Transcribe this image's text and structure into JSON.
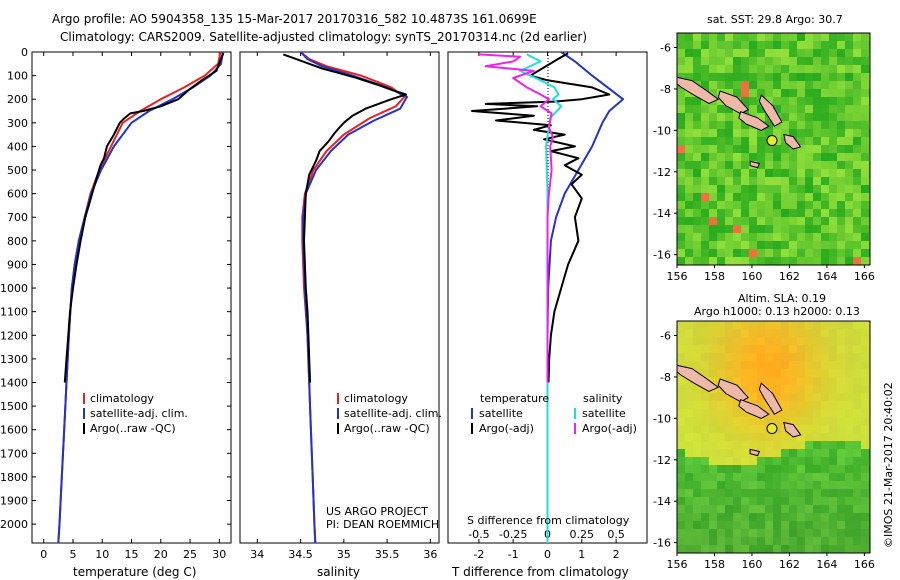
{
  "header": {
    "line1": "Argo profile: AO 5904358_135 15-Mar-2017 20170316_582 10.4873S 161.0699E",
    "line2": "Climatology: CARS2009. Satellite-adjusted climatology: synTS_20170314.nc (2d earlier)"
  },
  "colors": {
    "climatology": "#e8231e",
    "satellite": "#2233cc",
    "argo": "#000000",
    "salinity_diff_sat": "#22dddd",
    "salinity_diff_argo": "#ee22ee"
  },
  "temperature_panel": {
    "xlabel": "temperature (deg C)",
    "legend": [
      "climatology",
      "satellite-adj. clim.",
      "Argo(..raw -QC)"
    ]
  },
  "salinity_panel": {
    "xlabel": "salinity",
    "legend": [
      "climatology",
      "satellite-adj. clim.",
      "Argo(..raw -QC)"
    ],
    "credit1": "US ARGO PROJECT",
    "credit2": "PI: DEAN ROEMMICH"
  },
  "difference_panel": {
    "top_label": "S difference from climatology",
    "xlabel": "T difference from climatology",
    "legend_header_t": "temperature",
    "legend_header_s": "salinity",
    "legend_t": [
      "satellite",
      "Argo(-adj)"
    ],
    "legend_s": [
      "satellite",
      "Argo(-adj)"
    ]
  },
  "sst_map": {
    "title": "sat. SST: 29.8 Argo: 30.7",
    "xticks": [
      "156",
      "158",
      "160",
      "162",
      "164",
      "166"
    ],
    "yticks": [
      "-6",
      "-8",
      "-10",
      "-12",
      "-14",
      "-16"
    ]
  },
  "sla_map": {
    "title1": "Altim. SLA: 0.19",
    "title2": "Argo h1000: 0.13 h2000: 0.13",
    "xticks": [
      "156",
      "158",
      "160",
      "162",
      "164",
      "166"
    ],
    "yticks": [
      "-6",
      "-8",
      "-10",
      "-12",
      "-14",
      "-16"
    ]
  },
  "stamp": "©IMOS 21-Mar-2017 20:40:02",
  "chart_data": [
    {
      "type": "line",
      "name": "temperature profile",
      "xlabel": "temperature (deg C)",
      "xlim": [
        -2,
        32
      ],
      "ylim": [
        0,
        2080
      ],
      "xticks": [
        0,
        5,
        10,
        15,
        20,
        25,
        30
      ],
      "yticks": [
        0,
        100,
        200,
        300,
        400,
        500,
        600,
        700,
        800,
        900,
        1000,
        1100,
        1200,
        1300,
        1400,
        1500,
        1600,
        1700,
        1800,
        1900,
        2000
      ],
      "series": [
        {
          "name": "climatology",
          "points": [
            [
              30.2,
              0
            ],
            [
              29.8,
              50
            ],
            [
              27.5,
              100
            ],
            [
              24,
              150
            ],
            [
              20,
              200
            ],
            [
              16.5,
              250
            ],
            [
              13.5,
              300
            ],
            [
              11.5,
              400
            ],
            [
              9.5,
              500
            ],
            [
              8,
              600
            ],
            [
              7,
              700
            ],
            [
              6,
              800
            ],
            [
              5.3,
              900
            ],
            [
              4.8,
              1000
            ],
            [
              4.3,
              1200
            ],
            [
              3.9,
              1400
            ],
            [
              3.5,
              1600
            ],
            [
              3.1,
              1800
            ],
            [
              2.7,
              2000
            ],
            [
              2.5,
              2080
            ]
          ]
        },
        {
          "name": "satellite-adj. clim.",
          "points": [
            [
              30.6,
              0
            ],
            [
              30.3,
              50
            ],
            [
              28.5,
              100
            ],
            [
              25.5,
              150
            ],
            [
              22,
              200
            ],
            [
              18,
              250
            ],
            [
              15,
              300
            ],
            [
              12,
              400
            ],
            [
              9.8,
              500
            ],
            [
              8.1,
              600
            ],
            [
              7,
              700
            ],
            [
              6,
              800
            ],
            [
              5.3,
              900
            ],
            [
              4.8,
              1000
            ],
            [
              4.3,
              1200
            ],
            [
              3.9,
              1400
            ],
            [
              3.5,
              1600
            ],
            [
              3.1,
              1800
            ],
            [
              2.7,
              2000
            ],
            [
              2.5,
              2080
            ]
          ]
        },
        {
          "name": "Argo(..raw -QC)",
          "points": [
            [
              30.7,
              5
            ],
            [
              30.1,
              40
            ],
            [
              29.5,
              80
            ],
            [
              27,
              120
            ],
            [
              24.8,
              160
            ],
            [
              23,
              200
            ],
            [
              20,
              230
            ],
            [
              17,
              250
            ],
            [
              14.8,
              260
            ],
            [
              13.8,
              280
            ],
            [
              13,
              300
            ],
            [
              12,
              350
            ],
            [
              10.8,
              400
            ],
            [
              10.3,
              450
            ],
            [
              9.7,
              480
            ],
            [
              9.2,
              520
            ],
            [
              8.5,
              580
            ],
            [
              7.7,
              650
            ],
            [
              7.1,
              700
            ],
            [
              6.3,
              800
            ],
            [
              5.6,
              900
            ],
            [
              5,
              1000
            ],
            [
              4.5,
              1100
            ],
            [
              4.2,
              1200
            ],
            [
              3.9,
              1300
            ],
            [
              3.6,
              1400
            ]
          ]
        }
      ]
    },
    {
      "type": "line",
      "name": "salinity profile",
      "xlabel": "salinity",
      "xlim": [
        33.8,
        36.1
      ],
      "ylim": [
        0,
        2080
      ],
      "xticks": [
        34,
        34.5,
        35,
        35.5,
        36
      ],
      "series": [
        {
          "name": "climatology",
          "points": [
            [
              34.5,
              0
            ],
            [
              34.6,
              30
            ],
            [
              34.8,
              60
            ],
            [
              35.2,
              100
            ],
            [
              35.55,
              150
            ],
            [
              35.7,
              190
            ],
            [
              35.6,
              230
            ],
            [
              35.3,
              280
            ],
            [
              35,
              350
            ],
            [
              34.8,
              420
            ],
            [
              34.65,
              500
            ],
            [
              34.55,
              600
            ],
            [
              34.52,
              700
            ],
            [
              34.52,
              800
            ],
            [
              34.54,
              1000
            ],
            [
              34.58,
              1200
            ],
            [
              34.6,
              1400
            ],
            [
              34.62,
              1600
            ],
            [
              34.64,
              1800
            ],
            [
              34.66,
              2000
            ],
            [
              34.67,
              2080
            ]
          ]
        },
        {
          "name": "satellite-adj. clim.",
          "points": [
            [
              34.5,
              0
            ],
            [
              34.58,
              30
            ],
            [
              34.75,
              60
            ],
            [
              35.1,
              100
            ],
            [
              35.5,
              150
            ],
            [
              35.73,
              190
            ],
            [
              35.65,
              240
            ],
            [
              35.35,
              290
            ],
            [
              35.05,
              350
            ],
            [
              34.85,
              420
            ],
            [
              34.68,
              500
            ],
            [
              34.56,
              600
            ],
            [
              34.53,
              700
            ],
            [
              34.53,
              800
            ],
            [
              34.55,
              1000
            ],
            [
              34.58,
              1200
            ],
            [
              34.6,
              1400
            ],
            [
              34.62,
              1600
            ],
            [
              34.64,
              1800
            ],
            [
              34.66,
              2000
            ],
            [
              34.67,
              2080
            ]
          ]
        },
        {
          "name": "Argo(..raw -QC)",
          "points": [
            [
              34.3,
              10
            ],
            [
              34.45,
              30
            ],
            [
              34.6,
              50
            ],
            [
              34.75,
              70
            ],
            [
              34.95,
              90
            ],
            [
              35.15,
              110
            ],
            [
              35.4,
              140
            ],
            [
              35.55,
              160
            ],
            [
              35.72,
              180
            ],
            [
              35.55,
              200
            ],
            [
              35.4,
              220
            ],
            [
              35.25,
              240
            ],
            [
              35.1,
              270
            ],
            [
              35.0,
              300
            ],
            [
              34.9,
              340
            ],
            [
              34.82,
              380
            ],
            [
              34.72,
              420
            ],
            [
              34.68,
              460
            ],
            [
              34.6,
              520
            ],
            [
              34.56,
              600
            ],
            [
              34.55,
              700
            ],
            [
              34.54,
              800
            ],
            [
              34.55,
              900
            ],
            [
              34.56,
              1000
            ],
            [
              34.58,
              1100
            ],
            [
              34.59,
              1200
            ],
            [
              34.6,
              1300
            ],
            [
              34.61,
              1400
            ]
          ]
        }
      ]
    },
    {
      "type": "line",
      "name": "difference from climatology",
      "xlabel": "T difference from climatology",
      "x2label": "S difference from climatology",
      "xlim": [
        -2.9,
        2.9
      ],
      "x2lim": [
        -0.725,
        0.725
      ],
      "ylim": [
        0,
        2080
      ],
      "xticks": [
        -2,
        -1,
        0,
        1,
        2
      ],
      "x2ticks": [
        "-0.5",
        "-0.25",
        "0",
        "0.25",
        "0.5"
      ],
      "series": [
        {
          "name": "temperature satellite",
          "points": [
            [
              0.4,
              0
            ],
            [
              0.8,
              40
            ],
            [
              1.3,
              100
            ],
            [
              2.2,
              200
            ],
            [
              1.8,
              250
            ],
            [
              1.6,
              300
            ],
            [
              1.3,
              400
            ],
            [
              0.9,
              500
            ],
            [
              0.5,
              600
            ],
            [
              0.25,
              700
            ],
            [
              0.1,
              800
            ],
            [
              0.02,
              1000
            ],
            [
              0,
              1200
            ],
            [
              0,
              2080
            ]
          ]
        },
        {
          "name": "temperature Argo(-adj)",
          "points": [
            [
              0.6,
              5
            ],
            [
              0.3,
              30
            ],
            [
              -0.5,
              100
            ],
            [
              0,
              120
            ],
            [
              1.3,
              150
            ],
            [
              1.8,
              180
            ],
            [
              1.0,
              200
            ],
            [
              0.2,
              210
            ],
            [
              -1.8,
              220
            ],
            [
              -0.3,
              230
            ],
            [
              -2.2,
              250
            ],
            [
              -0.4,
              270
            ],
            [
              -1.5,
              290
            ],
            [
              0.1,
              310
            ],
            [
              -0.4,
              330
            ],
            [
              0.5,
              350
            ],
            [
              -0.1,
              370
            ],
            [
              0.8,
              400
            ],
            [
              0.1,
              420
            ],
            [
              0.9,
              450
            ],
            [
              0.5,
              480
            ],
            [
              1.0,
              520
            ],
            [
              0.7,
              560
            ],
            [
              1.0,
              620
            ],
            [
              0.8,
              700
            ],
            [
              0.9,
              800
            ],
            [
              0.6,
              900
            ],
            [
              0.4,
              1000
            ],
            [
              0.2,
              1100
            ],
            [
              0.1,
              1200
            ],
            [
              0.05,
              1300
            ],
            [
              0.03,
              1400
            ]
          ]
        },
        {
          "name": "salinity satellite",
          "points": [
            [
              -0.15,
              10
            ],
            [
              -0.05,
              40
            ],
            [
              -0.2,
              80
            ],
            [
              -0.05,
              120
            ],
            [
              0.05,
              150
            ],
            [
              0.08,
              180
            ],
            [
              0.04,
              200
            ],
            [
              0.1,
              230
            ],
            [
              0.02,
              280
            ],
            [
              0.01,
              320
            ],
            [
              -0.01,
              400
            ],
            [
              0,
              600
            ],
            [
              0,
              2080
            ]
          ]
        },
        {
          "name": "salinity Argo(-adj)",
          "points": [
            [
              -0.5,
              10
            ],
            [
              -0.2,
              20
            ],
            [
              -0.25,
              40
            ],
            [
              -0.45,
              60
            ],
            [
              -0.1,
              80
            ],
            [
              -0.25,
              110
            ],
            [
              -0.15,
              150
            ],
            [
              -0.05,
              180
            ],
            [
              0.01,
              200
            ],
            [
              -0.05,
              230
            ],
            [
              0.03,
              260
            ],
            [
              0.01,
              320
            ],
            [
              0.04,
              360
            ],
            [
              0.02,
              400
            ],
            [
              0.03,
              500
            ],
            [
              0.01,
              600
            ],
            [
              0.0,
              700
            ],
            [
              0.0,
              800
            ],
            [
              0.0,
              900
            ],
            [
              0.0,
              1000
            ],
            [
              0.0,
              1200
            ],
            [
              0.0,
              1400
            ]
          ]
        }
      ]
    },
    {
      "type": "heatmap",
      "name": "sat. SST map",
      "title": "sat. SST: 29.8 Argo: 30.7",
      "xlim": [
        156,
        166.3
      ],
      "ylim": [
        -16.5,
        -5.3
      ],
      "argo_position": [
        161.07,
        -10.49
      ]
    },
    {
      "type": "heatmap",
      "name": "Altim. SLA map",
      "title": "Altim. SLA: 0.19 Argo h1000: 0.13 h2000: 0.13",
      "xlim": [
        156,
        166.3
      ],
      "ylim": [
        -16.5,
        -5.3
      ],
      "argo_position": [
        161.07,
        -10.49
      ]
    }
  ]
}
